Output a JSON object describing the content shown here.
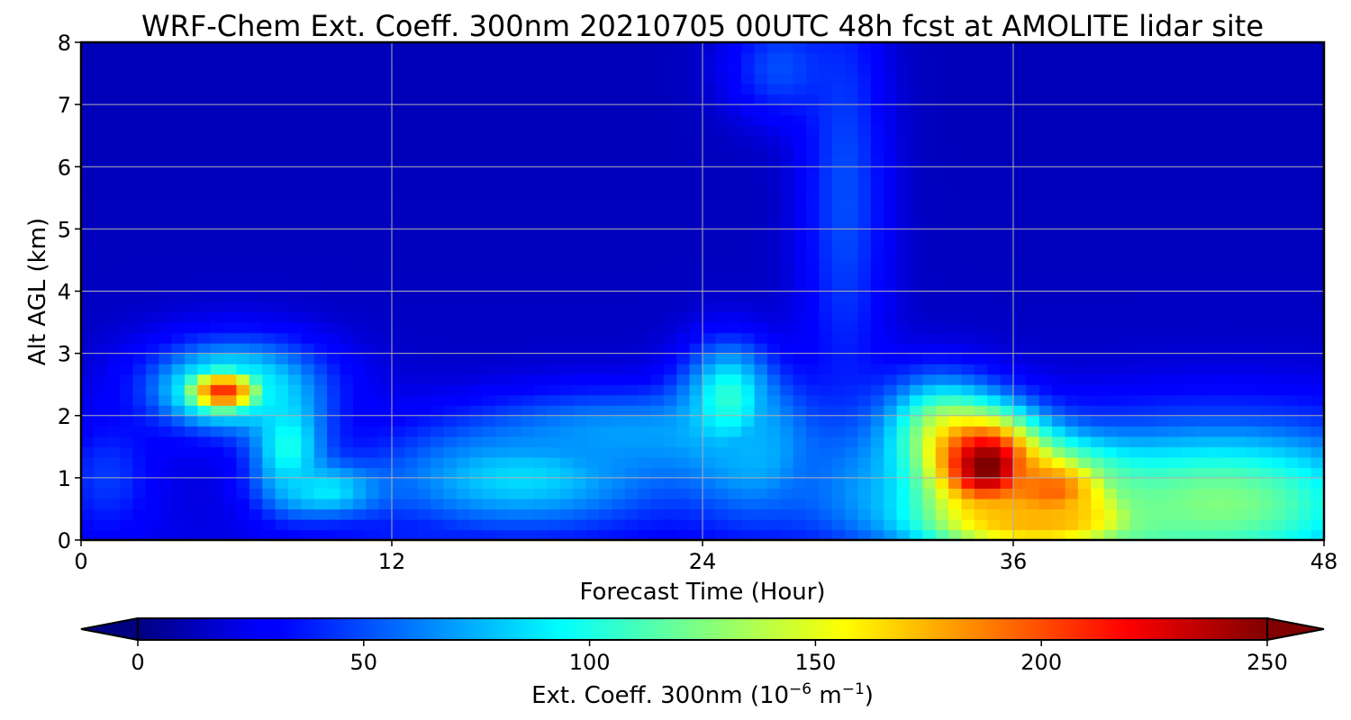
{
  "chart_data": {
    "type": "heatmap",
    "title": "WRF-Chem Ext. Coeff. 300nm  20210705 00UTC 48h fcst at AMOLITE lidar site",
    "xlabel": "Forecast Time (Hour)",
    "ylabel": "Alt AGL (km)",
    "xlim": [
      0,
      48
    ],
    "ylim": [
      0,
      8
    ],
    "x_ticks": [
      "0",
      "12",
      "24",
      "36",
      "48"
    ],
    "y_ticks": [
      "0",
      "1",
      "2",
      "3",
      "4",
      "5",
      "6",
      "7",
      "8"
    ],
    "grid": true,
    "colormap": "jet",
    "colorbar": {
      "orientation": "horizontal",
      "position": "bottom",
      "min": 0,
      "max": 250,
      "extend": "both",
      "ticks": [
        "0",
        "50",
        "100",
        "150",
        "200",
        "250"
      ],
      "label_main": "Ext. Coeff. 300nm  (10",
      "label_exp1": "−6",
      "label_mid": " m",
      "label_exp2": "−1",
      "label_end": ")"
    },
    "features": [
      {
        "x": 0,
        "y": 0.3,
        "value": 25,
        "sx": 2,
        "sy": 0.8
      },
      {
        "x": 1,
        "y": 1.0,
        "value": 45,
        "sx": 1.2,
        "sy": 0.6
      },
      {
        "x": 5.5,
        "y": 2.4,
        "value": 210,
        "sx": 1.2,
        "sy": 0.28
      },
      {
        "x": 6,
        "y": 2.5,
        "value": 90,
        "sx": 2.5,
        "sy": 0.55
      },
      {
        "x": 8,
        "y": 1.5,
        "value": 100,
        "sx": 1.0,
        "sy": 0.6
      },
      {
        "x": 9.5,
        "y": 0.8,
        "value": 90,
        "sx": 1.5,
        "sy": 0.3
      },
      {
        "x": 17,
        "y": 1.0,
        "value": 85,
        "sx": 4,
        "sy": 0.6
      },
      {
        "x": 21,
        "y": 1.7,
        "value": 70,
        "sx": 4,
        "sy": 0.5
      },
      {
        "x": 25,
        "y": 2.3,
        "value": 105,
        "sx": 1.2,
        "sy": 0.6
      },
      {
        "x": 26,
        "y": 1.4,
        "value": 75,
        "sx": 2,
        "sy": 0.8
      },
      {
        "x": 29.5,
        "y": 5.5,
        "value": 50,
        "sx": 1.2,
        "sy": 2.5
      },
      {
        "x": 27,
        "y": 7.6,
        "value": 50,
        "sx": 1.5,
        "sy": 0.6
      },
      {
        "x": 30,
        "y": 1.0,
        "value": 60,
        "sx": 2,
        "sy": 0.6
      },
      {
        "x": 33,
        "y": 1.8,
        "value": 110,
        "sx": 1.5,
        "sy": 0.6
      },
      {
        "x": 35,
        "y": 1.2,
        "value": 255,
        "sx": 1.6,
        "sy": 0.6
      },
      {
        "x": 37.5,
        "y": 0.8,
        "value": 195,
        "sx": 2,
        "sy": 0.5
      },
      {
        "x": 37,
        "y": 0.3,
        "value": 175,
        "sx": 3.5,
        "sy": 0.4
      },
      {
        "x": 44,
        "y": 0.6,
        "value": 125,
        "sx": 5,
        "sy": 0.9
      },
      {
        "x": 44,
        "y": 1.4,
        "value": 45,
        "sx": 5,
        "sy": 0.5
      },
      {
        "x": 14,
        "y": 0.05,
        "value": 40,
        "sx": 3,
        "sy": 0.2
      }
    ]
  }
}
